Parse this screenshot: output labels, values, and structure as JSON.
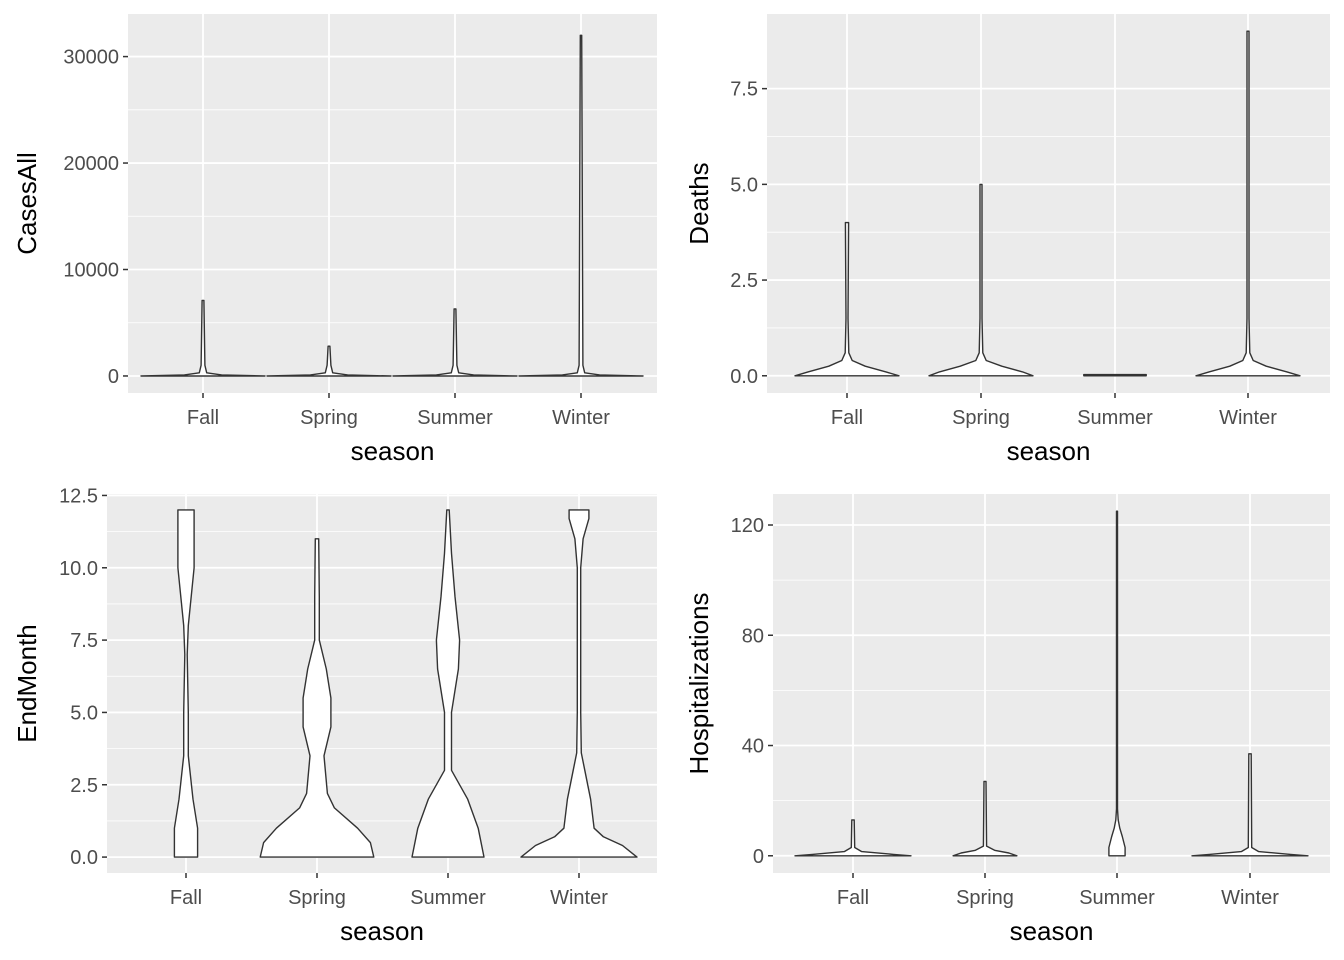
{
  "colors": {
    "panel_background": "#ebebeb",
    "grid_major": "#ffffff",
    "violin_fill": "#ffffff",
    "violin_stroke": "#333333",
    "tick_label": "#4d4d4d",
    "axis_title": "#000000"
  },
  "chart_data": [
    {
      "type": "violin",
      "xlabel": "season",
      "ylabel": "CasesAll",
      "categories": [
        "Fall",
        "Spring",
        "Summer",
        "Winter"
      ],
      "ylim": [
        -1600,
        34000
      ],
      "yticks": [
        0,
        10000,
        20000,
        30000
      ],
      "ytick_labels": [
        "0",
        "10000",
        "20000",
        "30000"
      ],
      "violins": [
        {
          "name": "Fall",
          "max_width": 1.0,
          "profile": [
            [
              0,
              1.0
            ],
            [
              100,
              0.3
            ],
            [
              300,
              0.06
            ],
            [
              1000,
              0.03
            ],
            [
              7100,
              0.015
            ]
          ]
        },
        {
          "name": "Spring",
          "max_width": 1.0,
          "profile": [
            [
              0,
              1.0
            ],
            [
              100,
              0.3
            ],
            [
              300,
              0.06
            ],
            [
              1000,
              0.03
            ],
            [
              2800,
              0.015
            ]
          ]
        },
        {
          "name": "Summer",
          "max_width": 1.0,
          "profile": [
            [
              0,
              1.0
            ],
            [
              100,
              0.3
            ],
            [
              300,
              0.06
            ],
            [
              1000,
              0.03
            ],
            [
              6300,
              0.015
            ]
          ]
        },
        {
          "name": "Winter",
          "max_width": 1.0,
          "profile": [
            [
              0,
              1.0
            ],
            [
              100,
              0.3
            ],
            [
              300,
              0.06
            ],
            [
              1000,
              0.03
            ],
            [
              32000,
              0.012
            ]
          ]
        }
      ]
    },
    {
      "type": "violin",
      "xlabel": "season",
      "ylabel": "Deaths",
      "categories": [
        "Fall",
        "Spring",
        "Summer",
        "Winter"
      ],
      "ylim": [
        -0.45,
        9.45
      ],
      "yticks": [
        0,
        2.5,
        5,
        7.5
      ],
      "ytick_labels": [
        "0.0",
        "2.5",
        "5.0",
        "7.5"
      ],
      "violins": [
        {
          "name": "Fall",
          "max_width": 1.0,
          "profile": [
            [
              0,
              1.0
            ],
            [
              0.1,
              0.75
            ],
            [
              0.25,
              0.35
            ],
            [
              0.4,
              0.1
            ],
            [
              0.6,
              0.035
            ],
            [
              1.5,
              0.02
            ],
            [
              4.0,
              0.03
            ]
          ]
        },
        {
          "name": "Spring",
          "max_width": 1.0,
          "profile": [
            [
              0,
              1.0
            ],
            [
              0.1,
              0.8
            ],
            [
              0.25,
              0.4
            ],
            [
              0.4,
              0.1
            ],
            [
              0.6,
              0.035
            ],
            [
              1.5,
              0.02
            ],
            [
              5.0,
              0.02
            ]
          ]
        },
        {
          "name": "Summer",
          "max_width": 0.6,
          "profile": [
            [
              0,
              1.0
            ],
            [
              0.03,
              1.0
            ]
          ]
        },
        {
          "name": "Winter",
          "max_width": 1.0,
          "profile": [
            [
              0,
              1.0
            ],
            [
              0.1,
              0.75
            ],
            [
              0.25,
              0.35
            ],
            [
              0.4,
              0.1
            ],
            [
              0.6,
              0.035
            ],
            [
              1.5,
              0.02
            ],
            [
              9.0,
              0.02
            ]
          ]
        }
      ]
    },
    {
      "type": "violin",
      "xlabel": "season",
      "ylabel": "EndMonth",
      "categories": [
        "Fall",
        "Spring",
        "Summer",
        "Winter"
      ],
      "ylim": [
        -0.55,
        12.55
      ],
      "yticks": [
        0,
        2.5,
        5,
        7.5,
        10,
        12.5
      ],
      "ytick_labels": [
        "0.0",
        "2.5",
        "5.0",
        "7.5",
        "10.0",
        "12.5"
      ],
      "violins": [
        {
          "name": "Fall",
          "max_width": 1.0,
          "profile": [
            [
              0,
              0.2
            ],
            [
              1,
              0.2
            ],
            [
              2,
              0.12
            ],
            [
              3.5,
              0.04
            ],
            [
              5,
              0.04
            ],
            [
              7,
              0.02
            ],
            [
              8,
              0.04
            ],
            [
              10,
              0.14
            ],
            [
              11.5,
              0.14
            ],
            [
              12,
              0.14
            ]
          ]
        },
        {
          "name": "Spring",
          "max_width": 1.0,
          "profile": [
            [
              0,
              0.98
            ],
            [
              0.5,
              0.92
            ],
            [
              1,
              0.7
            ],
            [
              1.7,
              0.3
            ],
            [
              2.2,
              0.18
            ],
            [
              3.5,
              0.12
            ],
            [
              4.5,
              0.24
            ],
            [
              5.5,
              0.24
            ],
            [
              6.5,
              0.16
            ],
            [
              7.5,
              0.04
            ],
            [
              9,
              0.04
            ],
            [
              11,
              0.03
            ]
          ]
        },
        {
          "name": "Summer",
          "max_width": 1.0,
          "profile": [
            [
              0,
              0.62
            ],
            [
              1,
              0.52
            ],
            [
              2,
              0.34
            ],
            [
              3,
              0.06
            ],
            [
              5,
              0.06
            ],
            [
              6.5,
              0.18
            ],
            [
              7.5,
              0.2
            ],
            [
              9,
              0.12
            ],
            [
              10.5,
              0.06
            ],
            [
              12,
              0.02
            ]
          ]
        },
        {
          "name": "Winter",
          "max_width": 1.0,
          "profile": [
            [
              0,
              1.0
            ],
            [
              0.4,
              0.75
            ],
            [
              0.7,
              0.42
            ],
            [
              1.0,
              0.26
            ],
            [
              2.0,
              0.2
            ],
            [
              3.0,
              0.1
            ],
            [
              3.6,
              0.04
            ],
            [
              5,
              0.03
            ],
            [
              10,
              0.03
            ],
            [
              11,
              0.07
            ],
            [
              11.7,
              0.17
            ],
            [
              12,
              0.17
            ]
          ]
        }
      ]
    },
    {
      "type": "violin",
      "xlabel": "season",
      "ylabel": "Hospitalizations",
      "categories": [
        "Fall",
        "Spring",
        "Summer",
        "Winter"
      ],
      "ylim": [
        -6.25,
        131.25
      ],
      "yticks": [
        0,
        40,
        80,
        120
      ],
      "ytick_labels": [
        "0",
        "40",
        "80",
        "120"
      ],
      "violins": [
        {
          "name": "Fall",
          "max_width": 1.0,
          "profile": [
            [
              0,
              1.0
            ],
            [
              0.5,
              0.7
            ],
            [
              1.5,
              0.15
            ],
            [
              3,
              0.03
            ],
            [
              13,
              0.02
            ]
          ]
        },
        {
          "name": "Spring",
          "max_width": 0.55,
          "profile": [
            [
              0,
              1.0
            ],
            [
              1,
              0.75
            ],
            [
              2,
              0.3
            ],
            [
              3.5,
              0.05
            ],
            [
              27,
              0.03
            ]
          ]
        },
        {
          "name": "Summer",
          "max_width": 0.14,
          "profile": [
            [
              0,
              1.0
            ],
            [
              3,
              1.0
            ],
            [
              7,
              0.65
            ],
            [
              10,
              0.35
            ],
            [
              13,
              0.15
            ],
            [
              17,
              0.06
            ],
            [
              125,
              0.06
            ]
          ]
        },
        {
          "name": "Winter",
          "max_width": 1.0,
          "profile": [
            [
              0,
              1.0
            ],
            [
              0.5,
              0.7
            ],
            [
              1.5,
              0.15
            ],
            [
              3,
              0.03
            ],
            [
              37,
              0.02
            ]
          ]
        }
      ]
    }
  ]
}
